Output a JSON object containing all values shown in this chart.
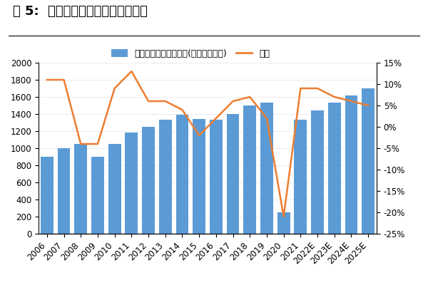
{
  "title": "图 5:  全球箱包行业市场规模及增速",
  "years": [
    "2006",
    "2007",
    "2008",
    "2009",
    "2010",
    "2011",
    "2012",
    "2013",
    "2014",
    "2015",
    "2016",
    "2017",
    "2018",
    "2019",
    "2020",
    "2021",
    "2022E",
    "2023E",
    "2024E",
    "2025E"
  ],
  "market_size": [
    900,
    1000,
    1050,
    900,
    1050,
    1180,
    1250,
    1330,
    1390,
    1340,
    1330,
    1400,
    1500,
    1530,
    250,
    1330,
    1440,
    1530,
    1620,
    1700
  ],
  "growth_rate": [
    0.11,
    0.11,
    -0.04,
    -0.04,
    0.09,
    0.13,
    0.06,
    0.06,
    0.04,
    -0.02,
    0.02,
    0.06,
    0.07,
    0.02,
    -0.21,
    0.09,
    0.09,
    0.07,
    0.06,
    0.05
  ],
  "bar_color": "#5B9BD5",
  "line_color": "#ED7D31",
  "bar_label": "全球箱包行业市场规模(单位：亿美元)",
  "line_label": "增速",
  "ylim_left": [
    0,
    2000
  ],
  "ylim_right": [
    -0.25,
    0.15
  ],
  "right_ticks": [
    -0.25,
    -0.2,
    -0.15,
    -0.1,
    -0.05,
    0.0,
    0.05,
    0.1,
    0.15
  ],
  "left_ticks": [
    0,
    200,
    400,
    600,
    800,
    1000,
    1200,
    1400,
    1600,
    1800,
    2000
  ],
  "background_color": "#FFFFFF",
  "title_fontsize": 13,
  "legend_fontsize": 9,
  "tick_fontsize": 8.5
}
